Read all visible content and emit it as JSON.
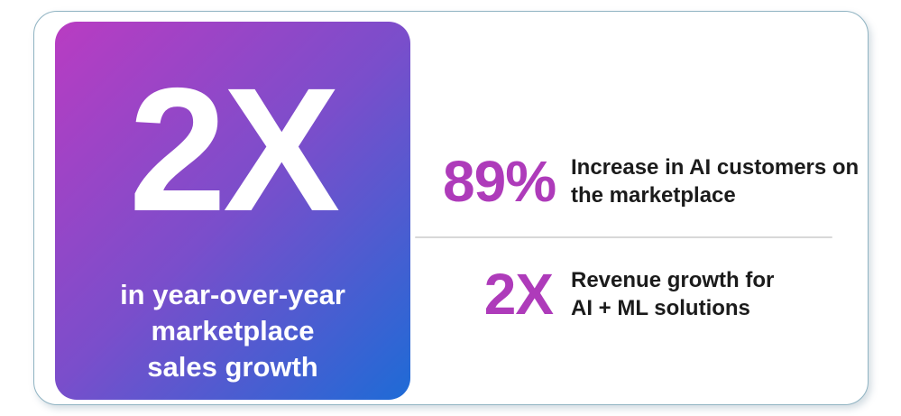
{
  "colors": {
    "accent": "#ae3bba",
    "text": "#1b1b1b",
    "card_bg": "#ffffff",
    "border": "#8fb3c2",
    "divider": "#d8d8d8",
    "gradient_from": "#b93cc2",
    "gradient_mid": "#7a4ecb",
    "gradient_to": "#1e6bd6",
    "hero_text": "#ffffff"
  },
  "hero_card": {
    "value": "2X",
    "caption": "in year-over-year marketplace sales growth",
    "caption_lines": [
      "in year-over-year",
      "marketplace",
      "sales growth"
    ]
  },
  "stats": [
    {
      "value": "89%",
      "label": "Increase in AI customers on the marketplace",
      "label_lines": [
        "Increase in AI customers on",
        "the marketplace"
      ]
    },
    {
      "value": "2X",
      "label": "Revenue growth for AI + ML solutions",
      "label_lines": [
        "Revenue growth for",
        "AI + ML solutions"
      ]
    }
  ]
}
